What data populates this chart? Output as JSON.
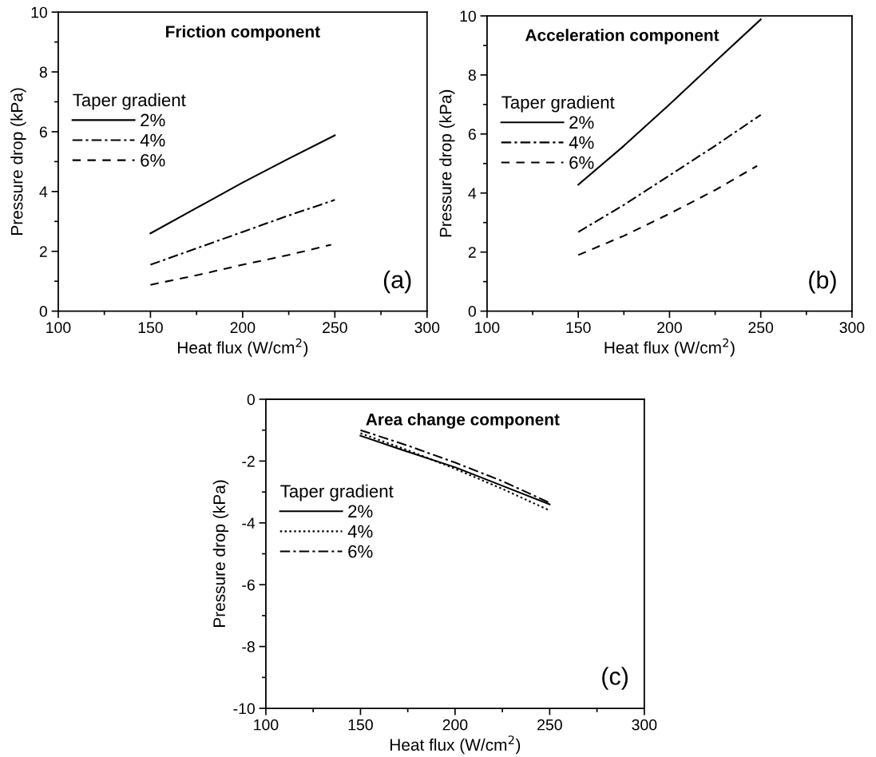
{
  "chart_data": [
    {
      "type": "line",
      "title": "Friction component",
      "xlabel": "Heat flux (W/cm$^{2}$)",
      "ylabel": "Pressure drop (kPa)",
      "legend_title": "Taper gradient",
      "annotations": [
        "(a)"
      ],
      "xlim": [
        100,
        300
      ],
      "xticks": [
        100,
        150,
        200,
        250,
        300
      ],
      "ylim": [
        0,
        10
      ],
      "yticks": [
        0,
        2,
        4,
        6,
        8,
        10
      ],
      "grid": false,
      "legend": "center left",
      "series": [
        {
          "name": "2%",
          "color": "#000000",
          "line_style": "solid",
          "x": [
            150,
            175,
            200,
            225,
            250
          ],
          "values": [
            2.6,
            3.45,
            4.3,
            5.1,
            5.88
          ]
        },
        {
          "name": "4%",
          "color": "#000000",
          "line_style": "dashdot",
          "x": [
            150,
            175,
            200,
            225,
            250
          ],
          "values": [
            1.55,
            2.1,
            2.65,
            3.2,
            3.72
          ]
        },
        {
          "name": "6%",
          "color": "#000000",
          "line_style": "dashed",
          "x": [
            150,
            175,
            200,
            225,
            248
          ],
          "values": [
            0.88,
            1.2,
            1.55,
            1.88,
            2.22
          ]
        }
      ]
    },
    {
      "type": "line",
      "title": "Acceleration component",
      "xlabel": "Heat flux (W/cm$^{2}$)",
      "ylabel": "Pressure drop (kPa)",
      "legend_title": "Taper gradient",
      "annotations": [
        "(b)"
      ],
      "xlim": [
        100,
        300
      ],
      "xticks": [
        100,
        150,
        200,
        250,
        300
      ],
      "ylim": [
        0,
        10
      ],
      "yticks": [
        0,
        2,
        4,
        6,
        8,
        10
      ],
      "grid": false,
      "legend": "center left",
      "series": [
        {
          "name": "2%",
          "color": "#000000",
          "line_style": "solid",
          "x": [
            150,
            175,
            200,
            225,
            250
          ],
          "values": [
            4.28,
            5.6,
            7.0,
            8.45,
            9.88
          ]
        },
        {
          "name": "4%",
          "color": "#000000",
          "line_style": "dashdot",
          "x": [
            150,
            175,
            200,
            225,
            250
          ],
          "values": [
            2.68,
            3.6,
            4.6,
            5.6,
            6.65
          ]
        },
        {
          "name": "6%",
          "color": "#000000",
          "line_style": "dashed",
          "x": [
            150,
            175,
            200,
            225,
            248
          ],
          "values": [
            1.9,
            2.55,
            3.3,
            4.1,
            4.92
          ]
        }
      ]
    },
    {
      "type": "line",
      "title": "Area change component",
      "xlabel": "Heat flux (W/cm$^{2}$)",
      "ylabel": "Pressure drop (kPa)",
      "legend_title": "Taper gradient",
      "annotations": [
        "(c)"
      ],
      "xlim": [
        100,
        300
      ],
      "xticks": [
        100,
        150,
        200,
        250,
        300
      ],
      "ylim": [
        -10,
        0
      ],
      "yticks": [
        -10,
        -8,
        -6,
        -4,
        -2,
        0
      ],
      "grid": false,
      "legend": "center left",
      "series": [
        {
          "name": "2%",
          "color": "#000000",
          "line_style": "solid",
          "x": [
            150,
            175,
            200,
            225,
            250
          ],
          "values": [
            -1.18,
            -1.7,
            -2.2,
            -2.8,
            -3.4
          ]
        },
        {
          "name": "4%",
          "color": "#000000",
          "line_style": "dotted",
          "x": [
            150,
            175,
            200,
            225,
            250
          ],
          "values": [
            -1.1,
            -1.65,
            -2.25,
            -2.9,
            -3.6
          ]
        },
        {
          "name": "6%",
          "color": "#000000",
          "line_style": "dashdot",
          "x": [
            150,
            175,
            200,
            225,
            250
          ],
          "values": [
            -1.0,
            -1.5,
            -2.05,
            -2.65,
            -3.35
          ]
        }
      ]
    }
  ]
}
